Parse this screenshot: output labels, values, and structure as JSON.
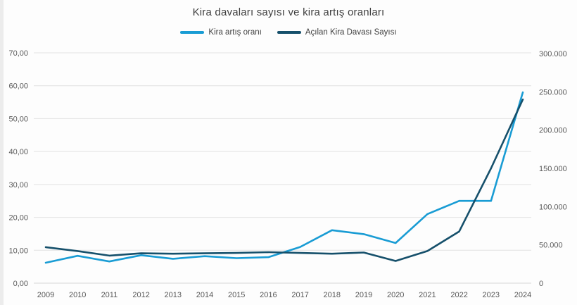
{
  "page": {
    "title": "Kira davaları sayısı ve kira artış oranları"
  },
  "chart_data": {
    "type": "line",
    "title": "Kira davaları sayısı ve kira artış oranları",
    "legend_position": "top",
    "grid": "horizontal",
    "categories": [
      "2009",
      "2010",
      "2011",
      "2012",
      "2013",
      "2014",
      "2015",
      "2016",
      "2017",
      "2018",
      "2019",
      "2020",
      "2021",
      "2022",
      "2023",
      "2024"
    ],
    "series": [
      {
        "name": "Kira artış oranı",
        "axis": "left",
        "color": "#199CD4",
        "values": [
          6.2,
          8.3,
          6.6,
          8.5,
          7.4,
          8.2,
          7.6,
          7.9,
          11.0,
          16.1,
          14.9,
          12.2,
          21.0,
          25.0,
          25.0,
          58.0
        ]
      },
      {
        "name": "Açılan Kira Davası Sayısı",
        "axis": "right",
        "color": "#16506B",
        "values": [
          47000,
          42000,
          36000,
          39000,
          38500,
          39000,
          39500,
          40500,
          39500,
          38500,
          40000,
          29000,
          42000,
          67500,
          150000,
          240000
        ]
      }
    ],
    "left_axis": {
      "range": [
        0,
        70
      ],
      "ticks": [
        "0,00",
        "10,00",
        "20,00",
        "30,00",
        "40,00",
        "50,00",
        "60,00",
        "70,00"
      ]
    },
    "right_axis": {
      "range": [
        0,
        300000
      ],
      "ticks": [
        "0",
        "50.000",
        "100.000",
        "150.000",
        "200.000",
        "250.000",
        "300.000"
      ]
    },
    "colors": {
      "gridline": "#e2e2e2",
      "baseline": "#d6d6d6",
      "tick_text": "#595959",
      "title_text": "#3f3f3f"
    }
  }
}
